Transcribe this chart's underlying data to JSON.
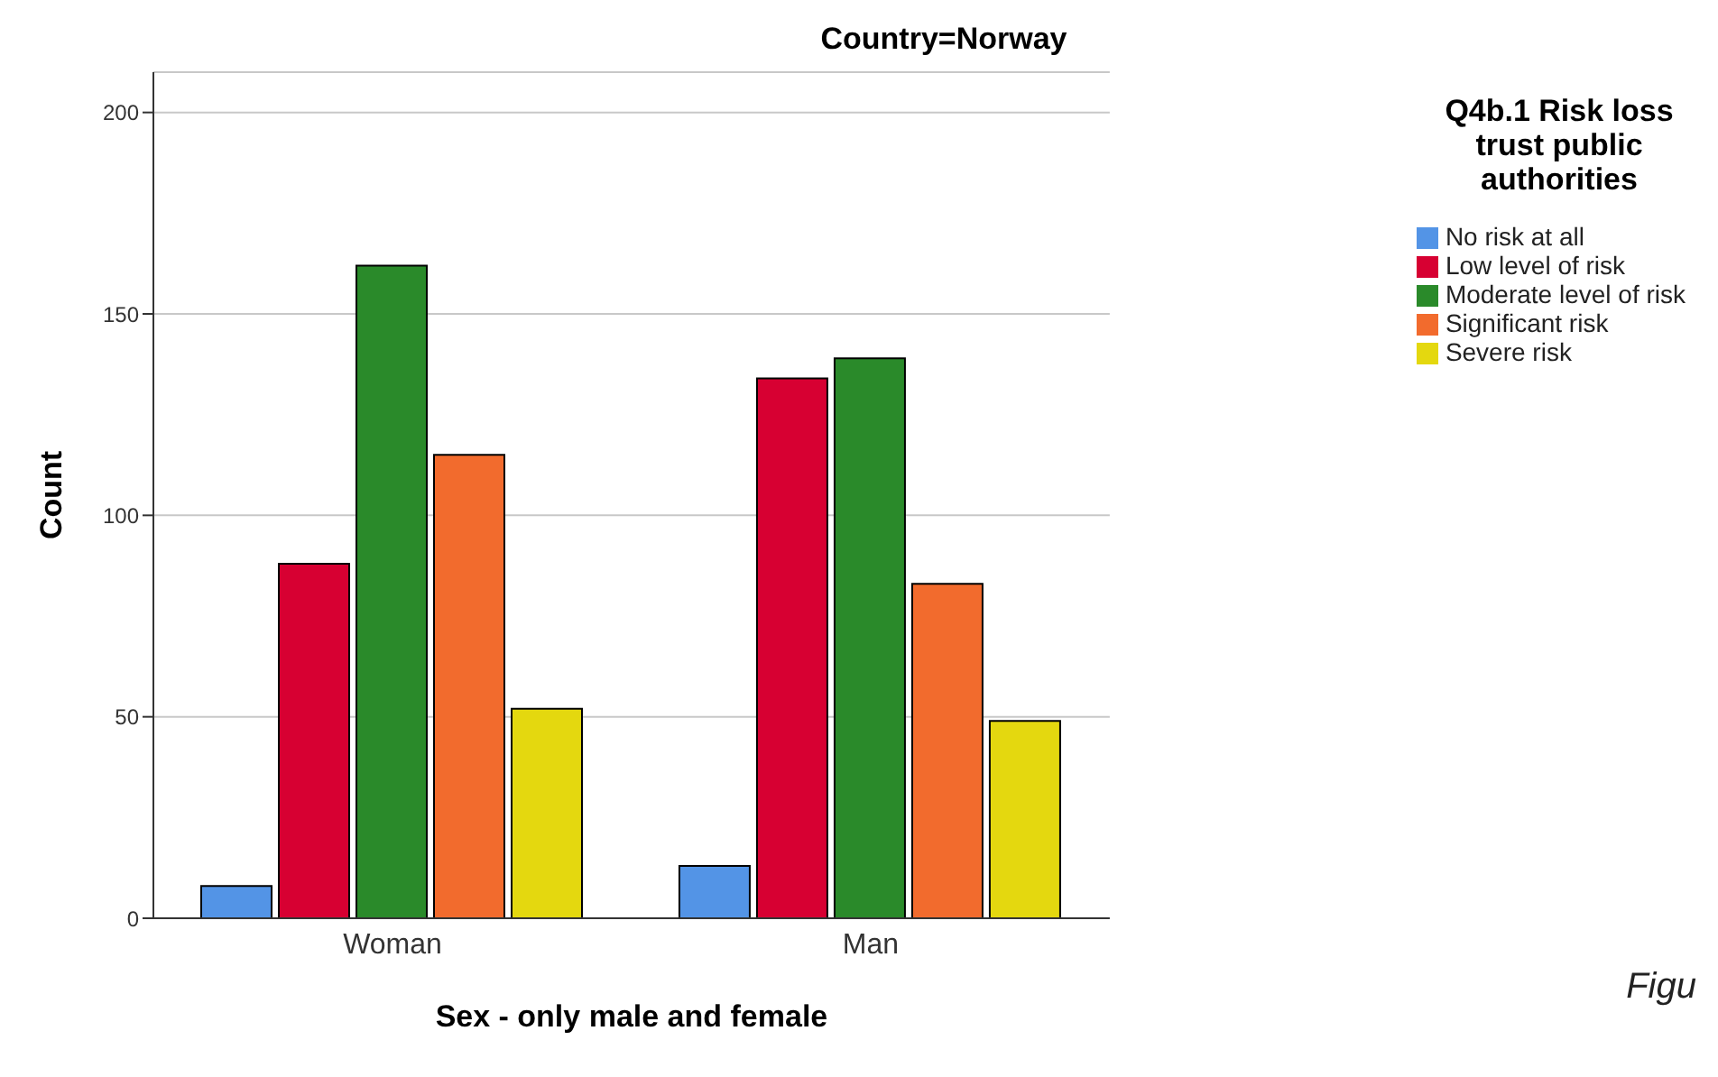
{
  "chart_data": {
    "type": "bar",
    "title": "Country=Norway",
    "xlabel": "Sex - only male and female",
    "ylabel": "Count",
    "legend_title": "Q4b.1 Risk loss trust public authorities",
    "categories": [
      "Woman",
      "Man"
    ],
    "series": [
      {
        "name": "No risk at all",
        "color": "#5394e6",
        "values": [
          8,
          13
        ]
      },
      {
        "name": "Low level of risk",
        "color": "#d70032",
        "values": [
          88,
          134
        ]
      },
      {
        "name": "Moderate level of risk",
        "color": "#2a8a2a",
        "values": [
          162,
          139
        ]
      },
      {
        "name": "Significant risk",
        "color": "#f26b2d",
        "values": [
          115,
          83
        ]
      },
      {
        "name": "Severe risk",
        "color": "#e4d80f",
        "values": [
          52,
          49
        ]
      }
    ],
    "ylim": [
      0,
      210
    ],
    "yticks": [
      0,
      50,
      100,
      150,
      200
    ],
    "grid": "y",
    "legend": "top right",
    "annotations": [
      "Figu"
    ]
  }
}
